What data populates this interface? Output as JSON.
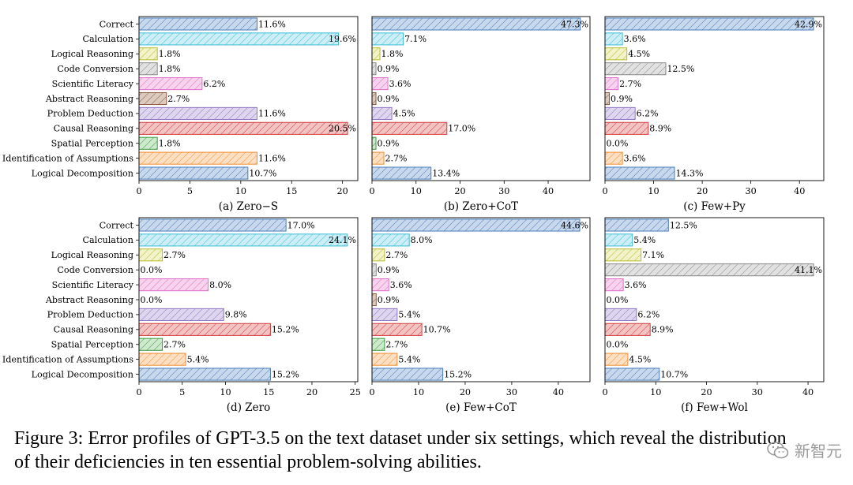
{
  "chart_data": [
    {
      "type": "bar",
      "orientation": "horizontal",
      "subtitle": "(a) Zero−S",
      "categories": [
        "Correct",
        "Calculation",
        "Logical Reasoning",
        "Code Conversion",
        "Scientific Literacy",
        "Abstract Reasoning",
        "Problem Deduction",
        "Causal Reasoning",
        "Spatial Perception",
        "Identification of Assumptions",
        "Logical Decomposition"
      ],
      "values": [
        11.6,
        19.6,
        1.8,
        1.8,
        6.2,
        2.7,
        11.6,
        20.5,
        1.8,
        11.6,
        10.7
      ],
      "value_labels": [
        "11.6%",
        "19.6%",
        "1.8%",
        "1.8%",
        "6.2%",
        "2.7%",
        "11.6%",
        "20.5%",
        "1.8%",
        "11.6%",
        "10.7%"
      ],
      "xlim": [
        0,
        21.5
      ],
      "xticks": [
        0,
        5,
        10,
        15,
        20
      ],
      "grid": false
    },
    {
      "type": "bar",
      "orientation": "horizontal",
      "subtitle": "(b) Zero+CoT",
      "categories": [
        "Correct",
        "Calculation",
        "Logical Reasoning",
        "Code Conversion",
        "Scientific Literacy",
        "Abstract Reasoning",
        "Problem Deduction",
        "Causal Reasoning",
        "Spatial Perception",
        "Identification of Assumptions",
        "Logical Decomposition"
      ],
      "values": [
        47.3,
        7.1,
        1.8,
        0.9,
        3.6,
        0.9,
        4.5,
        17.0,
        0.9,
        2.7,
        13.4
      ],
      "value_labels": [
        "47.3%",
        "7.1%",
        "1.8%",
        "0.9%",
        "3.6%",
        "0.9%",
        "4.5%",
        "17.0%",
        "0.9%",
        "2.7%",
        "13.4%"
      ],
      "xlim": [
        0,
        49.5
      ],
      "xticks": [
        0,
        10,
        20,
        30,
        40
      ],
      "grid": false
    },
    {
      "type": "bar",
      "orientation": "horizontal",
      "subtitle": "(c) Few+Py",
      "categories": [
        "Correct",
        "Calculation",
        "Logical Reasoning",
        "Code Conversion",
        "Scientific Literacy",
        "Abstract Reasoning",
        "Problem Deduction",
        "Causal Reasoning",
        "Spatial Perception",
        "Identification of Assumptions",
        "Logical Decomposition"
      ],
      "values": [
        42.9,
        3.6,
        4.5,
        12.5,
        2.7,
        0.9,
        6.2,
        8.9,
        0.0,
        3.6,
        14.3
      ],
      "value_labels": [
        "42.9%",
        "3.6%",
        "4.5%",
        "12.5%",
        "2.7%",
        "0.9%",
        "6.2%",
        "8.9%",
        "0.0%",
        "3.6%",
        "14.3%"
      ],
      "xlim": [
        0,
        45
      ],
      "xticks": [
        0,
        10,
        20,
        30,
        40
      ],
      "grid": false
    },
    {
      "type": "bar",
      "orientation": "horizontal",
      "subtitle": "(d) Zero",
      "categories": [
        "Correct",
        "Calculation",
        "Logical Reasoning",
        "Code Conversion",
        "Scientific Literacy",
        "Abstract Reasoning",
        "Problem Deduction",
        "Causal Reasoning",
        "Spatial Perception",
        "Identification of Assumptions",
        "Logical Decomposition"
      ],
      "values": [
        17.0,
        24.1,
        2.7,
        0.0,
        8.0,
        0.0,
        9.8,
        15.2,
        2.7,
        5.4,
        15.2
      ],
      "value_labels": [
        "17.0%",
        "24.1%",
        "2.7%",
        "0.0%",
        "8.0%",
        "0.0%",
        "9.8%",
        "15.2%",
        "2.7%",
        "5.4%",
        "15.2%"
      ],
      "xlim": [
        0,
        25.3
      ],
      "xticks": [
        0,
        5,
        10,
        15,
        20,
        25
      ],
      "grid": false
    },
    {
      "type": "bar",
      "orientation": "horizontal",
      "subtitle": "(e) Few+CoT",
      "categories": [
        "Correct",
        "Calculation",
        "Logical Reasoning",
        "Code Conversion",
        "Scientific Literacy",
        "Abstract Reasoning",
        "Problem Deduction",
        "Causal Reasoning",
        "Spatial Perception",
        "Identification of Assumptions",
        "Logical Decomposition"
      ],
      "values": [
        44.6,
        8.0,
        2.7,
        0.9,
        3.6,
        0.9,
        5.4,
        10.7,
        2.7,
        5.4,
        15.2
      ],
      "value_labels": [
        "44.6%",
        "8.0%",
        "2.7%",
        "0.9%",
        "3.6%",
        "0.9%",
        "5.4%",
        "10.7%",
        "2.7%",
        "5.4%",
        "15.2%"
      ],
      "xlim": [
        0,
        46.8
      ],
      "xticks": [
        0,
        10,
        20,
        30,
        40
      ],
      "grid": false
    },
    {
      "type": "bar",
      "orientation": "horizontal",
      "subtitle": "(f) Few+Wol",
      "categories": [
        "Correct",
        "Calculation",
        "Logical Reasoning",
        "Code Conversion",
        "Scientific Literacy",
        "Abstract Reasoning",
        "Problem Deduction",
        "Causal Reasoning",
        "Spatial Perception",
        "Identification of Assumptions",
        "Logical Decomposition"
      ],
      "values": [
        12.5,
        5.4,
        7.1,
        41.1,
        3.6,
        0.0,
        6.2,
        8.9,
        0.0,
        4.5,
        10.7
      ],
      "value_labels": [
        "12.5%",
        "5.4%",
        "7.1%",
        "41.1%",
        "3.6%",
        "0.0%",
        "6.2%",
        "8.9%",
        "0.0%",
        "4.5%",
        "10.7%"
      ],
      "xlim": [
        0,
        43.1
      ],
      "xticks": [
        0,
        10,
        20,
        30,
        40
      ],
      "grid": false
    }
  ],
  "bar_colors": [
    {
      "fill": "#c8d9ed",
      "edge": "#4a7cb8"
    },
    {
      "fill": "#cdeef7",
      "edge": "#3bbdd6"
    },
    {
      "fill": "#f2f3c8",
      "edge": "#b8bb2e"
    },
    {
      "fill": "#e1e1e1",
      "edge": "#8a8a8a"
    },
    {
      "fill": "#f8d3ee",
      "edge": "#df6fc8"
    },
    {
      "fill": "#dccabf",
      "edge": "#8c5a45"
    },
    {
      "fill": "#ded6ee",
      "edge": "#8f76c4"
    },
    {
      "fill": "#f1c3c3",
      "edge": "#d43b3b"
    },
    {
      "fill": "#cfe9cf",
      "edge": "#3d9c3d"
    },
    {
      "fill": "#fde0c4",
      "edge": "#f28d2e"
    },
    {
      "fill": "#c8d9ed",
      "edge": "#4a7cb8"
    }
  ],
  "caption": {
    "line1": "Figure 3: Error profiles of GPT-3.5 on the text dataset under six settings, which reveal the distribution",
    "line2": "of their deficiencies in ten essential problem-solving abilities."
  },
  "watermark": {
    "text": "新智元",
    "icon": "wechat-icon"
  }
}
